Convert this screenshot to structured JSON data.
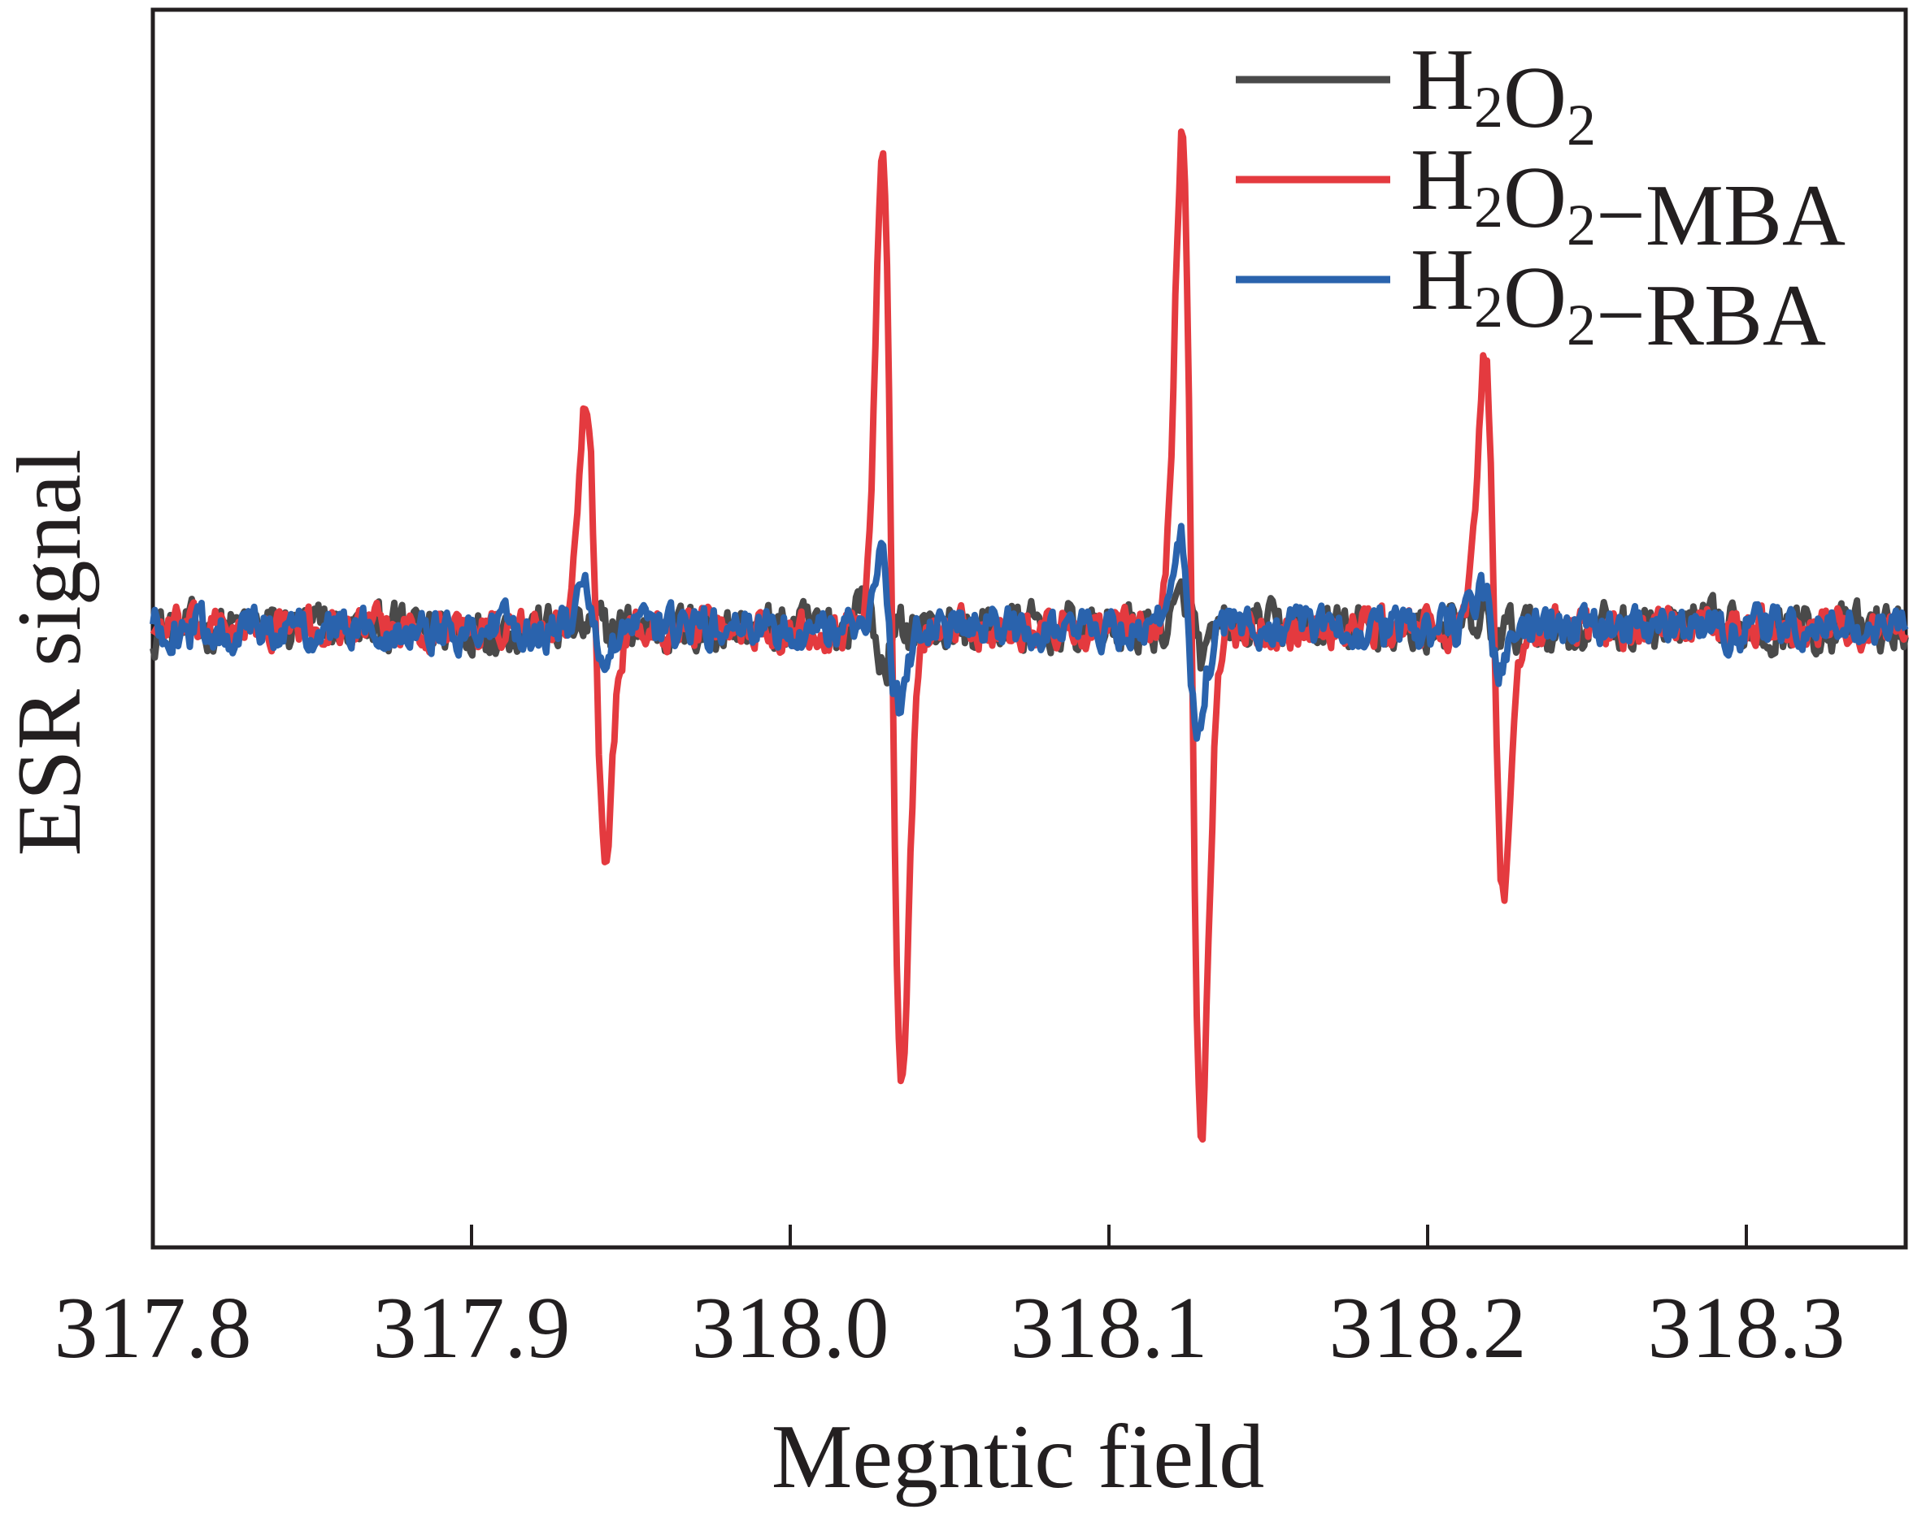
{
  "chart_data": {
    "type": "line",
    "xlabel": "Megntic field",
    "ylabel": "ESR signal",
    "xlim": [
      317.8,
      318.35
    ],
    "ylim": [
      -10.5,
      10.5
    ],
    "xticks": [
      317.8,
      317.9,
      318.0,
      318.1,
      318.2,
      318.3
    ],
    "xtick_labels": [
      "317.8",
      "317.9",
      "318.0",
      "318.1",
      "318.2",
      "318.3"
    ],
    "yticks_shown": false,
    "grid": false,
    "legend_position": "top-right",
    "series": [
      {
        "name": "H2O2",
        "legend_base": "H",
        "legend_sub1": "2",
        "legend_mid": "O",
        "legend_sub2": "2",
        "legend_suffix": "",
        "color": "#4a4a4a",
        "noise": 0.35,
        "peaks": [
          {
            "x": 318.026,
            "amp": 0.6,
            "width": 0.003
          },
          {
            "x": 318.127,
            "amp": 0.55,
            "width": 0.003
          },
          {
            "x": 318.22,
            "amp": 0.1,
            "width": 0.003
          }
        ]
      },
      {
        "name": "H2O2−MBA",
        "legend_base": "H",
        "legend_sub1": "2",
        "legend_mid": "O",
        "legend_sub2": "2",
        "legend_suffix": "−MBA",
        "color": "#e43a3f",
        "noise": 0.28,
        "peaks": [
          {
            "x": 317.939,
            "amp": 3.8,
            "width": 0.003
          },
          {
            "x": 318.032,
            "amp": 7.9,
            "width": 0.003
          },
          {
            "x": 318.126,
            "amp": 8.5,
            "width": 0.003
          },
          {
            "x": 318.221,
            "amp": 4.6,
            "width": 0.003
          }
        ]
      },
      {
        "name": "H2O2−RBA",
        "legend_base": "H",
        "legend_sub1": "2",
        "legend_mid": "O",
        "legend_sub2": "2",
        "legend_suffix": "−RBA",
        "color": "#2a63ad",
        "noise": 0.3,
        "peaks": [
          {
            "x": 317.939,
            "amp": 0.7,
            "width": 0.003
          },
          {
            "x": 318.031,
            "amp": 1.3,
            "width": 0.003
          },
          {
            "x": 318.125,
            "amp": 1.7,
            "width": 0.003
          },
          {
            "x": 318.22,
            "amp": 0.7,
            "width": 0.003
          }
        ]
      }
    ]
  }
}
